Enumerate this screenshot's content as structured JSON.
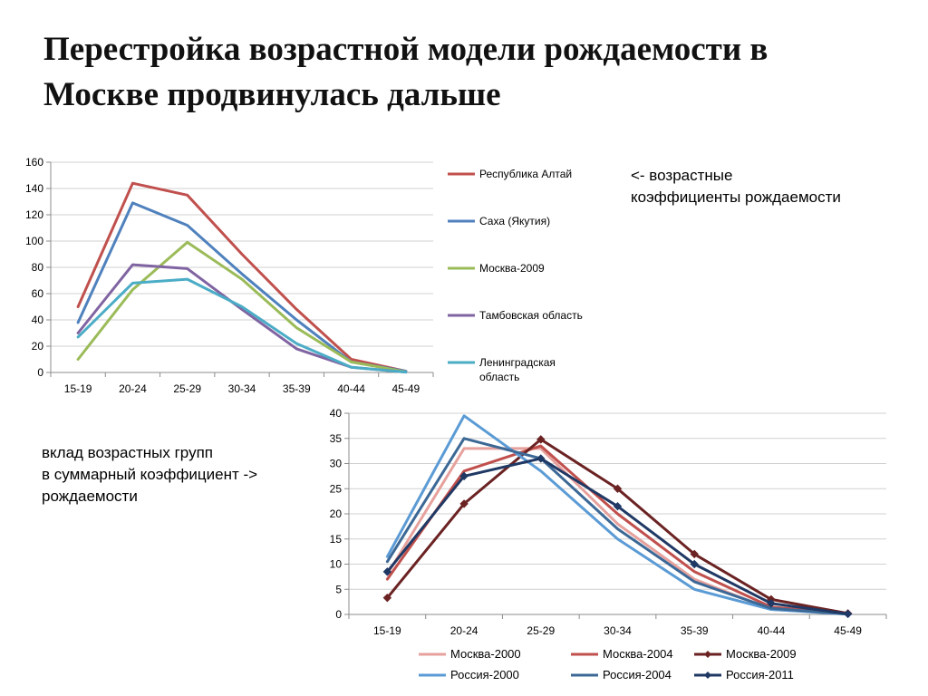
{
  "slide": {
    "title_line1": "Перестройка возрастной модели рождаемости в",
    "title_line2": "Москве продвинулась дальше"
  },
  "notes": {
    "top_right": [
      "<- возрастные",
      "коэффициенты рождаемости"
    ],
    "bottom_left": [
      "вклад возрастных групп",
      "в суммарный коэффициент ->",
      "рождаемости"
    ]
  },
  "chart_data": [
    {
      "type": "line",
      "categories": [
        "15-19",
        "20-24",
        "25-29",
        "30-34",
        "35-39",
        "40-44",
        "45-49"
      ],
      "ylim": [
        0,
        160
      ],
      "yticks": [
        0,
        20,
        40,
        60,
        80,
        100,
        120,
        140,
        160
      ],
      "grid": true,
      "legend_position": "right",
      "series": [
        {
          "name": "Республика Алтай",
          "color": "#C0504D",
          "values": [
            50,
            144,
            135,
            90,
            48,
            10,
            1
          ]
        },
        {
          "name": "Саха (Якутия)",
          "color": "#4F81BD",
          "values": [
            38,
            129,
            112,
            75,
            40,
            8,
            1
          ]
        },
        {
          "name": "Москва-2009",
          "color": "#9BBB59",
          "values": [
            10,
            63,
            99,
            71,
            34,
            8,
            0.5
          ]
        },
        {
          "name": "Тамбовская область",
          "color": "#8064A2",
          "values": [
            30,
            82,
            79,
            48,
            18,
            4,
            0.3
          ]
        },
        {
          "name": "Ленинградская область",
          "color": "#4BACC6",
          "values": [
            27,
            68,
            71,
            50,
            22,
            4,
            0.3
          ]
        }
      ]
    },
    {
      "type": "line",
      "categories": [
        "15-19",
        "20-24",
        "25-29",
        "30-34",
        "35-39",
        "40-44",
        "45-49"
      ],
      "ylim": [
        0,
        40
      ],
      "yticks": [
        0,
        5,
        10,
        15,
        20,
        25,
        30,
        35,
        40
      ],
      "grid": true,
      "legend_position": "bottom",
      "series": [
        {
          "name": "Москва-2000",
          "color": "#E6A19D",
          "marker": false,
          "values": [
            8,
            33,
            33,
            18,
            7,
            1,
            0.1
          ]
        },
        {
          "name": "Москва-2004",
          "color": "#C0504D",
          "marker": false,
          "values": [
            7,
            28.5,
            33.5,
            20,
            8.5,
            1.5,
            0.1
          ]
        },
        {
          "name": "Москва-2009",
          "color": "#6B2222",
          "marker": true,
          "values": [
            3.3,
            22,
            34.8,
            25,
            12,
            3,
            0.2
          ]
        },
        {
          "name": "Россия-2000",
          "color": "#5B9BD5",
          "marker": false,
          "values": [
            11.5,
            39.5,
            28.5,
            15,
            5,
            1,
            0.05
          ]
        },
        {
          "name": "Россия-2004",
          "color": "#3C6896",
          "marker": false,
          "values": [
            10.5,
            35,
            31,
            17,
            6.5,
            1.2,
            0.05
          ]
        },
        {
          "name": "Россия-2011",
          "color": "#1F3864",
          "marker": true,
          "values": [
            8.5,
            27.5,
            31,
            21.5,
            10,
            2.2,
            0.1
          ]
        }
      ]
    }
  ]
}
